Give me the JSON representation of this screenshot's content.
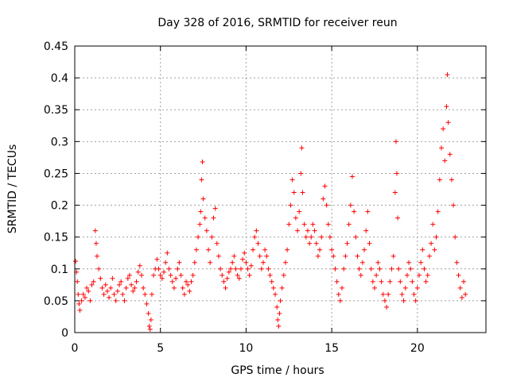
{
  "chart_data": {
    "type": "scatter",
    "title": "Day 328 of 2016, SRMTID for receiver reun",
    "xlabel": "GPS time / hours",
    "ylabel": "SRMTID / TECUs",
    "xlim": [
      0,
      24
    ],
    "ylim": [
      0,
      0.45
    ],
    "xticks": [
      0,
      5,
      10,
      15,
      20
    ],
    "xtick_labels": [
      "0",
      "5",
      "10",
      "15",
      "20"
    ],
    "yticks": [
      0,
      0.05,
      0.1,
      0.15,
      0.2,
      0.25,
      0.3,
      0.35,
      0.4,
      0.45
    ],
    "ytick_labels": [
      "0",
      "0.05",
      "0.1",
      "0.15",
      "0.2",
      "0.25",
      "0.3",
      "0.35",
      "0.4",
      "0.45"
    ],
    "grid": true,
    "marker": "+",
    "color": "#ff0000",
    "series": [
      {
        "name": "SRMTID",
        "points": [
          [
            0.05,
            0.112
          ],
          [
            0.1,
            0.095
          ],
          [
            0.15,
            0.08
          ],
          [
            0.2,
            0.06
          ],
          [
            0.25,
            0.045
          ],
          [
            0.3,
            0.035
          ],
          [
            0.4,
            0.05
          ],
          [
            0.5,
            0.06
          ],
          [
            0.6,
            0.055
          ],
          [
            0.7,
            0.07
          ],
          [
            0.8,
            0.065
          ],
          [
            0.9,
            0.05
          ],
          [
            1.0,
            0.075
          ],
          [
            1.1,
            0.08
          ],
          [
            1.2,
            0.16
          ],
          [
            1.25,
            0.14
          ],
          [
            1.3,
            0.12
          ],
          [
            1.4,
            0.1
          ],
          [
            1.5,
            0.085
          ],
          [
            1.6,
            0.07
          ],
          [
            1.7,
            0.06
          ],
          [
            1.8,
            0.075
          ],
          [
            1.9,
            0.065
          ],
          [
            2.0,
            0.055
          ],
          [
            2.1,
            0.07
          ],
          [
            2.2,
            0.085
          ],
          [
            2.3,
            0.06
          ],
          [
            2.4,
            0.05
          ],
          [
            2.5,
            0.065
          ],
          [
            2.6,
            0.075
          ],
          [
            2.7,
            0.08
          ],
          [
            2.8,
            0.06
          ],
          [
            2.9,
            0.05
          ],
          [
            3.0,
            0.07
          ],
          [
            3.1,
            0.085
          ],
          [
            3.2,
            0.09
          ],
          [
            3.3,
            0.075
          ],
          [
            3.4,
            0.065
          ],
          [
            3.5,
            0.07
          ],
          [
            3.6,
            0.08
          ],
          [
            3.7,
            0.095
          ],
          [
            3.8,
            0.105
          ],
          [
            3.9,
            0.09
          ],
          [
            4.0,
            0.07
          ],
          [
            4.1,
            0.06
          ],
          [
            4.2,
            0.045
          ],
          [
            4.3,
            0.03
          ],
          [
            4.35,
            0.01
          ],
          [
            4.4,
            0.005
          ],
          [
            4.45,
            0.02
          ],
          [
            4.5,
            0.06
          ],
          [
            4.6,
            0.09
          ],
          [
            4.7,
            0.1
          ],
          [
            4.8,
            0.115
          ],
          [
            4.9,
            0.1
          ],
          [
            5.0,
            0.09
          ],
          [
            5.1,
            0.085
          ],
          [
            5.2,
            0.095
          ],
          [
            5.3,
            0.11
          ],
          [
            5.4,
            0.125
          ],
          [
            5.5,
            0.1
          ],
          [
            5.6,
            0.09
          ],
          [
            5.7,
            0.08
          ],
          [
            5.8,
            0.07
          ],
          [
            5.9,
            0.085
          ],
          [
            6.0,
            0.1
          ],
          [
            6.1,
            0.11
          ],
          [
            6.2,
            0.09
          ],
          [
            6.3,
            0.07
          ],
          [
            6.4,
            0.06
          ],
          [
            6.5,
            0.08
          ],
          [
            6.6,
            0.075
          ],
          [
            6.7,
            0.065
          ],
          [
            6.8,
            0.08
          ],
          [
            6.9,
            0.09
          ],
          [
            7.0,
            0.11
          ],
          [
            7.1,
            0.13
          ],
          [
            7.2,
            0.15
          ],
          [
            7.3,
            0.17
          ],
          [
            7.35,
            0.19
          ],
          [
            7.4,
            0.24
          ],
          [
            7.45,
            0.268
          ],
          [
            7.5,
            0.21
          ],
          [
            7.6,
            0.18
          ],
          [
            7.7,
            0.16
          ],
          [
            7.8,
            0.13
          ],
          [
            7.9,
            0.11
          ],
          [
            8.0,
            0.15
          ],
          [
            8.1,
            0.18
          ],
          [
            8.2,
            0.195
          ],
          [
            8.3,
            0.14
          ],
          [
            8.4,
            0.12
          ],
          [
            8.5,
            0.1
          ],
          [
            8.6,
            0.09
          ],
          [
            8.7,
            0.08
          ],
          [
            8.8,
            0.07
          ],
          [
            8.9,
            0.085
          ],
          [
            9.0,
            0.095
          ],
          [
            9.1,
            0.1
          ],
          [
            9.2,
            0.11
          ],
          [
            9.3,
            0.12
          ],
          [
            9.4,
            0.1
          ],
          [
            9.5,
            0.09
          ],
          [
            9.6,
            0.085
          ],
          [
            9.7,
            0.1
          ],
          [
            9.8,
            0.115
          ],
          [
            9.9,
            0.125
          ],
          [
            10.0,
            0.11
          ],
          [
            10.1,
            0.1
          ],
          [
            10.2,
            0.09
          ],
          [
            10.3,
            0.105
          ],
          [
            10.4,
            0.13
          ],
          [
            10.5,
            0.15
          ],
          [
            10.6,
            0.16
          ],
          [
            10.7,
            0.14
          ],
          [
            10.8,
            0.12
          ],
          [
            10.9,
            0.1
          ],
          [
            11.0,
            0.11
          ],
          [
            11.1,
            0.13
          ],
          [
            11.2,
            0.12
          ],
          [
            11.3,
            0.1
          ],
          [
            11.4,
            0.09
          ],
          [
            11.5,
            0.08
          ],
          [
            11.6,
            0.07
          ],
          [
            11.7,
            0.06
          ],
          [
            11.8,
            0.04
          ],
          [
            11.85,
            0.02
          ],
          [
            11.9,
            0.01
          ],
          [
            11.95,
            0.03
          ],
          [
            12.0,
            0.05
          ],
          [
            12.1,
            0.07
          ],
          [
            12.2,
            0.09
          ],
          [
            12.3,
            0.11
          ],
          [
            12.4,
            0.13
          ],
          [
            12.5,
            0.17
          ],
          [
            12.6,
            0.2
          ],
          [
            12.7,
            0.24
          ],
          [
            12.8,
            0.22
          ],
          [
            12.9,
            0.18
          ],
          [
            13.0,
            0.16
          ],
          [
            13.1,
            0.19
          ],
          [
            13.2,
            0.25
          ],
          [
            13.25,
            0.29
          ],
          [
            13.3,
            0.22
          ],
          [
            13.4,
            0.17
          ],
          [
            13.5,
            0.15
          ],
          [
            13.6,
            0.16
          ],
          [
            13.7,
            0.14
          ],
          [
            13.8,
            0.15
          ],
          [
            13.9,
            0.17
          ],
          [
            14.0,
            0.16
          ],
          [
            14.1,
            0.14
          ],
          [
            14.2,
            0.12
          ],
          [
            14.3,
            0.13
          ],
          [
            14.4,
            0.15
          ],
          [
            14.5,
            0.21
          ],
          [
            14.6,
            0.23
          ],
          [
            14.7,
            0.2
          ],
          [
            14.8,
            0.17
          ],
          [
            14.9,
            0.15
          ],
          [
            15.0,
            0.13
          ],
          [
            15.1,
            0.12
          ],
          [
            15.2,
            0.1
          ],
          [
            15.3,
            0.08
          ],
          [
            15.4,
            0.06
          ],
          [
            15.5,
            0.05
          ],
          [
            15.6,
            0.07
          ],
          [
            15.7,
            0.1
          ],
          [
            15.8,
            0.12
          ],
          [
            15.9,
            0.14
          ],
          [
            16.0,
            0.17
          ],
          [
            16.1,
            0.2
          ],
          [
            16.2,
            0.245
          ],
          [
            16.3,
            0.19
          ],
          [
            16.4,
            0.15
          ],
          [
            16.5,
            0.12
          ],
          [
            16.6,
            0.1
          ],
          [
            16.7,
            0.09
          ],
          [
            16.8,
            0.11
          ],
          [
            16.9,
            0.13
          ],
          [
            17.0,
            0.16
          ],
          [
            17.1,
            0.19
          ],
          [
            17.2,
            0.14
          ],
          [
            17.3,
            0.1
          ],
          [
            17.4,
            0.08
          ],
          [
            17.5,
            0.07
          ],
          [
            17.6,
            0.09
          ],
          [
            17.7,
            0.11
          ],
          [
            17.8,
            0.1
          ],
          [
            17.9,
            0.08
          ],
          [
            18.0,
            0.06
          ],
          [
            18.1,
            0.05
          ],
          [
            18.2,
            0.04
          ],
          [
            18.3,
            0.06
          ],
          [
            18.4,
            0.08
          ],
          [
            18.5,
            0.1
          ],
          [
            18.6,
            0.12
          ],
          [
            18.7,
            0.22
          ],
          [
            18.75,
            0.3
          ],
          [
            18.8,
            0.25
          ],
          [
            18.85,
            0.18
          ],
          [
            18.9,
            0.1
          ],
          [
            19.0,
            0.08
          ],
          [
            19.1,
            0.06
          ],
          [
            19.2,
            0.05
          ],
          [
            19.3,
            0.07
          ],
          [
            19.4,
            0.09
          ],
          [
            19.5,
            0.11
          ],
          [
            19.6,
            0.1
          ],
          [
            19.7,
            0.08
          ],
          [
            19.8,
            0.06
          ],
          [
            19.9,
            0.05
          ],
          [
            20.0,
            0.07
          ],
          [
            20.1,
            0.09
          ],
          [
            20.2,
            0.11
          ],
          [
            20.3,
            0.13
          ],
          [
            20.4,
            0.1
          ],
          [
            20.5,
            0.08
          ],
          [
            20.6,
            0.09
          ],
          [
            20.7,
            0.12
          ],
          [
            20.8,
            0.14
          ],
          [
            20.9,
            0.17
          ],
          [
            21.0,
            0.13
          ],
          [
            21.1,
            0.15
          ],
          [
            21.2,
            0.19
          ],
          [
            21.3,
            0.24
          ],
          [
            21.4,
            0.29
          ],
          [
            21.5,
            0.32
          ],
          [
            21.6,
            0.27
          ],
          [
            21.7,
            0.355
          ],
          [
            21.75,
            0.405
          ],
          [
            21.8,
            0.33
          ],
          [
            21.9,
            0.28
          ],
          [
            22.0,
            0.24
          ],
          [
            22.1,
            0.2
          ],
          [
            22.2,
            0.15
          ],
          [
            22.3,
            0.11
          ],
          [
            22.4,
            0.09
          ],
          [
            22.5,
            0.07
          ],
          [
            22.6,
            0.055
          ],
          [
            22.7,
            0.08
          ],
          [
            22.8,
            0.06
          ]
        ]
      }
    ]
  }
}
